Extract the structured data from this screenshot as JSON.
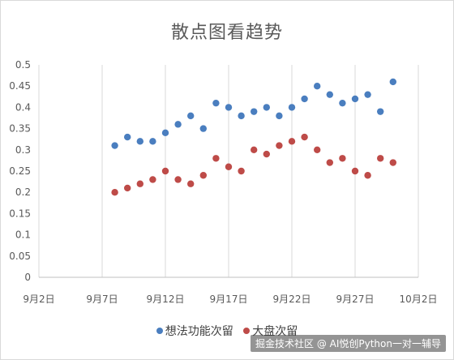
{
  "chart_data": {
    "type": "scatter",
    "title": "散点图看趋势",
    "xlabel": "",
    "ylabel": "",
    "x_tick_labels": [
      "9月2日",
      "9月7日",
      "9月12日",
      "9月17日",
      "9月22日",
      "9月27日",
      "10月2日"
    ],
    "x_tick_dates": [
      "2024-09-02",
      "2024-09-07",
      "2024-09-12",
      "2024-09-17",
      "2024-09-22",
      "2024-09-27",
      "2024-10-02"
    ],
    "xlim": [
      "2024-09-02",
      "2024-10-02"
    ],
    "ylim": [
      0,
      0.5
    ],
    "y_ticks": [
      "0",
      "0.05",
      "0.1",
      "0.15",
      "0.2",
      "0.25",
      "0.3",
      "0.35",
      "0.4",
      "0.45",
      "0.5"
    ],
    "grid": "vertical",
    "legend_position": "bottom",
    "series": [
      {
        "name": "想法功能次留",
        "color": "#4a7ebf",
        "points": [
          [
            "2024-09-08",
            0.31
          ],
          [
            "2024-09-09",
            0.33
          ],
          [
            "2024-09-10",
            0.32
          ],
          [
            "2024-09-11",
            0.32
          ],
          [
            "2024-09-12",
            0.34
          ],
          [
            "2024-09-13",
            0.36
          ],
          [
            "2024-09-14",
            0.38
          ],
          [
            "2024-09-15",
            0.35
          ],
          [
            "2024-09-16",
            0.41
          ],
          [
            "2024-09-17",
            0.4
          ],
          [
            "2024-09-18",
            0.38
          ],
          [
            "2024-09-19",
            0.39
          ],
          [
            "2024-09-20",
            0.4
          ],
          [
            "2024-09-21",
            0.38
          ],
          [
            "2024-09-22",
            0.4
          ],
          [
            "2024-09-23",
            0.42
          ],
          [
            "2024-09-24",
            0.45
          ],
          [
            "2024-09-25",
            0.43
          ],
          [
            "2024-09-26",
            0.41
          ],
          [
            "2024-09-27",
            0.42
          ],
          [
            "2024-09-28",
            0.43
          ],
          [
            "2024-09-29",
            0.39
          ],
          [
            "2024-09-30",
            0.46
          ]
        ]
      },
      {
        "name": "大盘次留",
        "color": "#be4b48",
        "points": [
          [
            "2024-09-08",
            0.2
          ],
          [
            "2024-09-09",
            0.21
          ],
          [
            "2024-09-10",
            0.22
          ],
          [
            "2024-09-11",
            0.23
          ],
          [
            "2024-09-12",
            0.25
          ],
          [
            "2024-09-13",
            0.23
          ],
          [
            "2024-09-14",
            0.22
          ],
          [
            "2024-09-15",
            0.24
          ],
          [
            "2024-09-16",
            0.28
          ],
          [
            "2024-09-17",
            0.26
          ],
          [
            "2024-09-18",
            0.25
          ],
          [
            "2024-09-19",
            0.3
          ],
          [
            "2024-09-20",
            0.29
          ],
          [
            "2024-09-21",
            0.31
          ],
          [
            "2024-09-22",
            0.32
          ],
          [
            "2024-09-23",
            0.33
          ],
          [
            "2024-09-24",
            0.3
          ],
          [
            "2024-09-25",
            0.27
          ],
          [
            "2024-09-26",
            0.28
          ],
          [
            "2024-09-27",
            0.25
          ],
          [
            "2024-09-28",
            0.24
          ],
          [
            "2024-09-29",
            0.28
          ],
          [
            "2024-09-30",
            0.27
          ]
        ]
      }
    ]
  },
  "watermark": "掘金技术社区 @ AI悦创Python一对一辅导"
}
